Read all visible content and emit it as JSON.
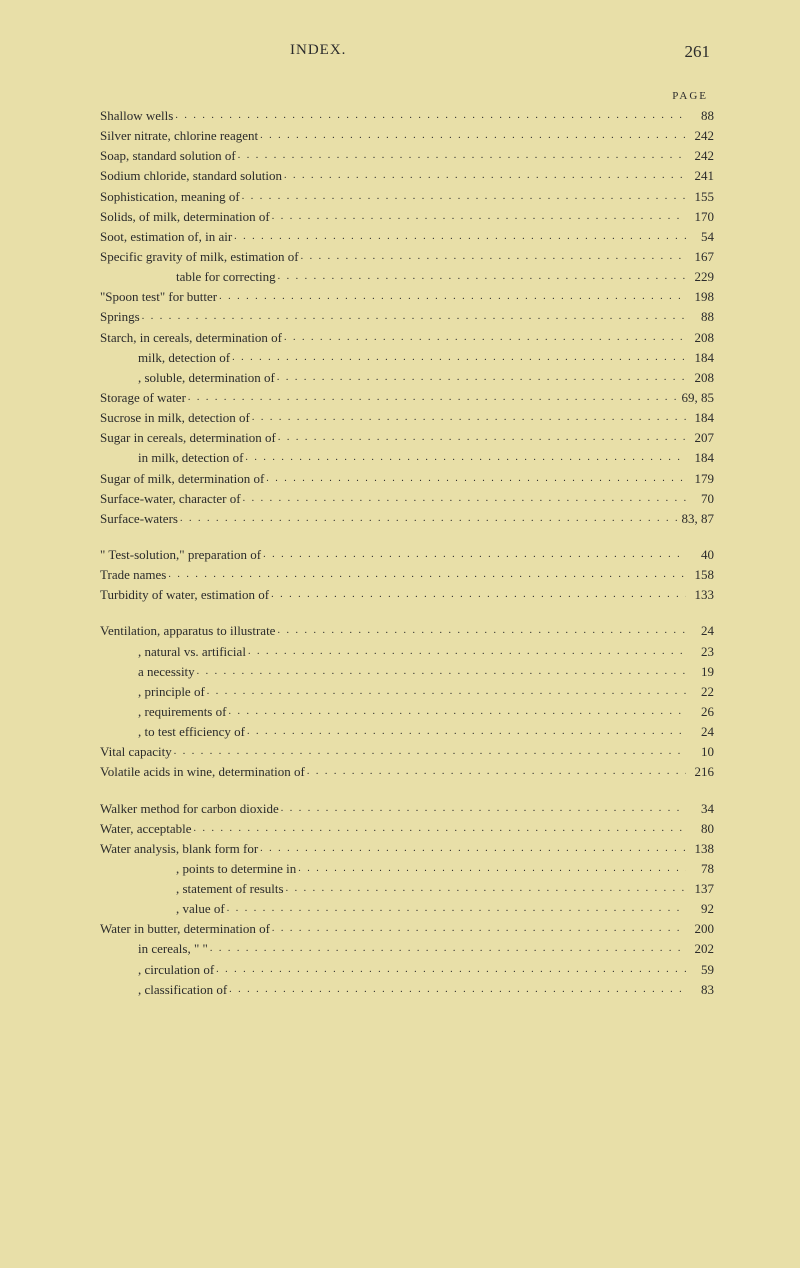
{
  "header": {
    "title": "INDEX.",
    "page_number": "261"
  },
  "page_label": "PAGE",
  "colors": {
    "background": "#e8dfa8",
    "text": "#2b2b2b"
  },
  "typography": {
    "body_fontsize": 13,
    "header_title_fontsize": 15,
    "header_page_fontsize": 17,
    "page_label_fontsize": 11,
    "font_family": "Georgia, Times New Roman, serif"
  },
  "groups": [
    {
      "entries": [
        {
          "text": "Shallow wells",
          "page": "88",
          "indent": 1
        },
        {
          "text": "Silver nitrate, chlorine reagent",
          "page": "242",
          "indent": 1
        },
        {
          "text": "Soap, standard solution of",
          "page": "242",
          "indent": 1
        },
        {
          "text": "Sodium chloride, standard solution",
          "page": "241",
          "indent": 1
        },
        {
          "text": "Sophistication, meaning of",
          "page": "155",
          "indent": 1
        },
        {
          "text": "Solids, of milk, determination of",
          "page": "170",
          "indent": 1
        },
        {
          "text": "Soot, estimation of, in air",
          "page": "54",
          "indent": 1
        },
        {
          "text": "Specific gravity of milk, estimation of",
          "page": "167",
          "indent": 1
        },
        {
          "text": "table for correcting",
          "page": "229",
          "indent": 3
        },
        {
          "text": "\"Spoon test\" for butter",
          "page": "198",
          "indent": 1
        },
        {
          "text": "Springs",
          "page": "88",
          "indent": 1
        },
        {
          "text": "Starch, in cereals, determination of",
          "page": "208",
          "indent": 1
        },
        {
          "text": "milk, detection of",
          "page": "184",
          "indent": 2
        },
        {
          "text": ", soluble, determination of",
          "page": "208",
          "indent": 2
        },
        {
          "text": "Storage of water",
          "page": "69, 85",
          "indent": 1
        },
        {
          "text": "Sucrose in milk, detection of",
          "page": "184",
          "indent": 1
        },
        {
          "text": "Sugar in cereals, determination of",
          "page": "207",
          "indent": 1
        },
        {
          "text": "in milk, detection of",
          "page": "184",
          "indent": 2
        },
        {
          "text": "Sugar of milk, determination of",
          "page": "179",
          "indent": 1
        },
        {
          "text": "Surface-water, character of",
          "page": "70",
          "indent": 1
        },
        {
          "text": "Surface-waters",
          "page": "83, 87",
          "indent": 1
        }
      ]
    },
    {
      "entries": [
        {
          "text": "\" Test-solution,\" preparation of",
          "page": "40",
          "indent": 1
        },
        {
          "text": "Trade names",
          "page": "158",
          "indent": 1
        },
        {
          "text": "Turbidity of water, estimation of",
          "page": "133",
          "indent": 1
        }
      ]
    },
    {
      "entries": [
        {
          "text": "Ventilation, apparatus to illustrate",
          "page": "24",
          "indent": 1
        },
        {
          "text": ", natural vs. artificial",
          "page": "23",
          "indent": 2
        },
        {
          "text": "a necessity",
          "page": "19",
          "indent": 2
        },
        {
          "text": ", principle of",
          "page": "22",
          "indent": 2
        },
        {
          "text": ", requirements of",
          "page": "26",
          "indent": 2
        },
        {
          "text": ", to test efficiency of",
          "page": "24",
          "indent": 2
        },
        {
          "text": "Vital capacity",
          "page": "10",
          "indent": 1
        },
        {
          "text": "Volatile acids in wine, determination of",
          "page": "216",
          "indent": 1
        }
      ]
    },
    {
      "entries": [
        {
          "text": "Walker method for carbon dioxide",
          "page": "34",
          "indent": 1
        },
        {
          "text": "Water, acceptable",
          "page": "80",
          "indent": 1
        },
        {
          "text": "Water analysis, blank form for",
          "page": "138",
          "indent": 1
        },
        {
          "text": ", points to determine in",
          "page": "78",
          "indent": 3
        },
        {
          "text": ", statement of results",
          "page": "137",
          "indent": 3
        },
        {
          "text": ", value of",
          "page": "92",
          "indent": 3
        },
        {
          "text": "Water in butter, determination of",
          "page": "200",
          "indent": 1
        },
        {
          "text": "in cereals,       \"           \"  ",
          "page": "202",
          "indent": 2
        },
        {
          "text": ", circulation of",
          "page": "59",
          "indent": 2
        },
        {
          "text": ", classification of",
          "page": "83",
          "indent": 2
        }
      ]
    }
  ]
}
